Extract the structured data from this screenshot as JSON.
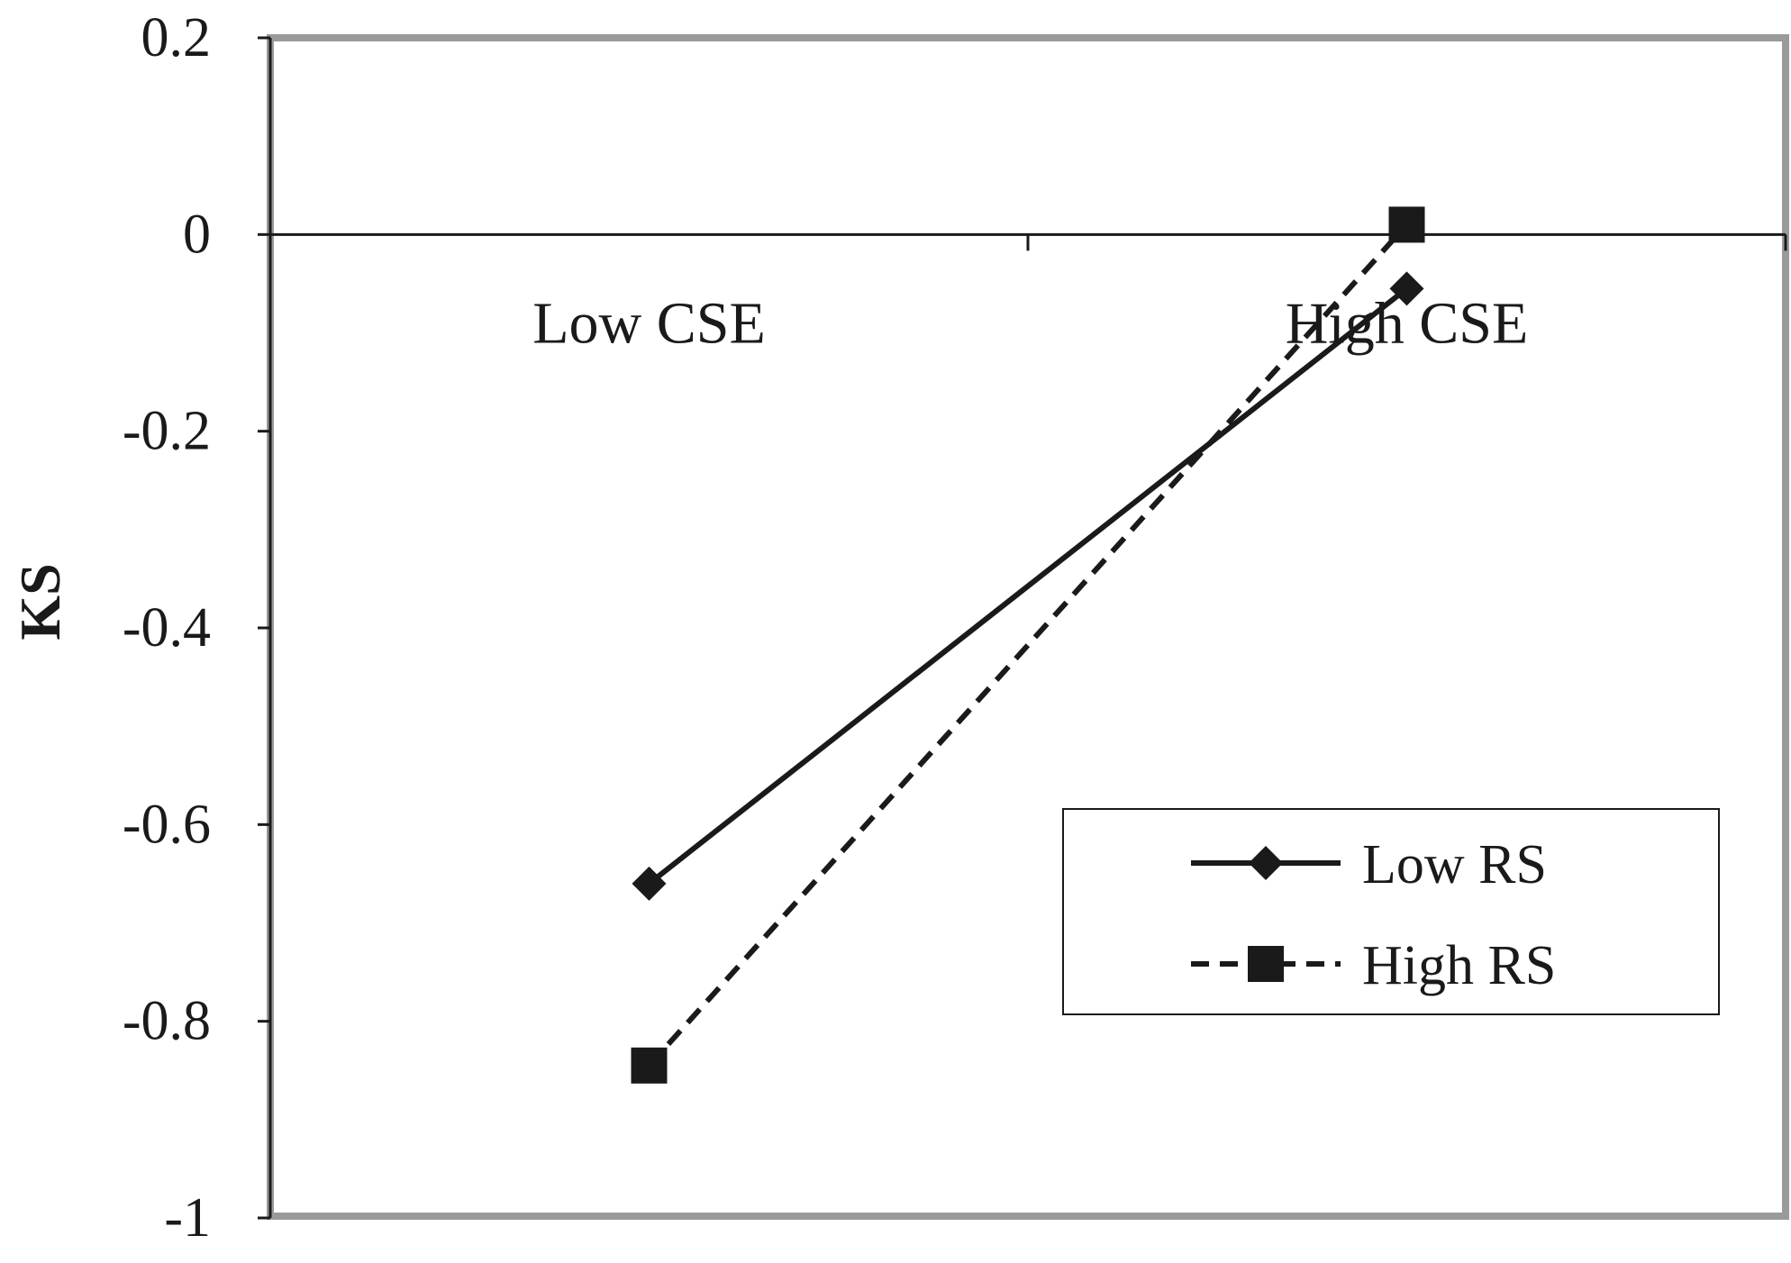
{
  "chart_data": {
    "type": "line",
    "title": "",
    "xlabel": "",
    "ylabel": "KS",
    "categories": [
      "Low CSE",
      "High CSE"
    ],
    "ylim": [
      -1,
      0.2
    ],
    "yticks": [
      0.2,
      0,
      -0.2,
      -0.4,
      -0.6,
      -0.8,
      -1
    ],
    "ytick_labels": [
      "0.2",
      "0",
      "-0.2",
      "-0.4",
      "-0.6",
      "-0.8",
      "-1"
    ],
    "grid": false,
    "legend_position": "bottom-right",
    "series": [
      {
        "name": "Low RS",
        "values": [
          -0.66,
          -0.055
        ],
        "line_style": "solid",
        "marker": "diamond",
        "color": "#1a1a1a"
      },
      {
        "name": "High RS",
        "values": [
          -0.845,
          0.01
        ],
        "line_style": "dashed",
        "marker": "square",
        "color": "#1a1a1a"
      }
    ]
  }
}
